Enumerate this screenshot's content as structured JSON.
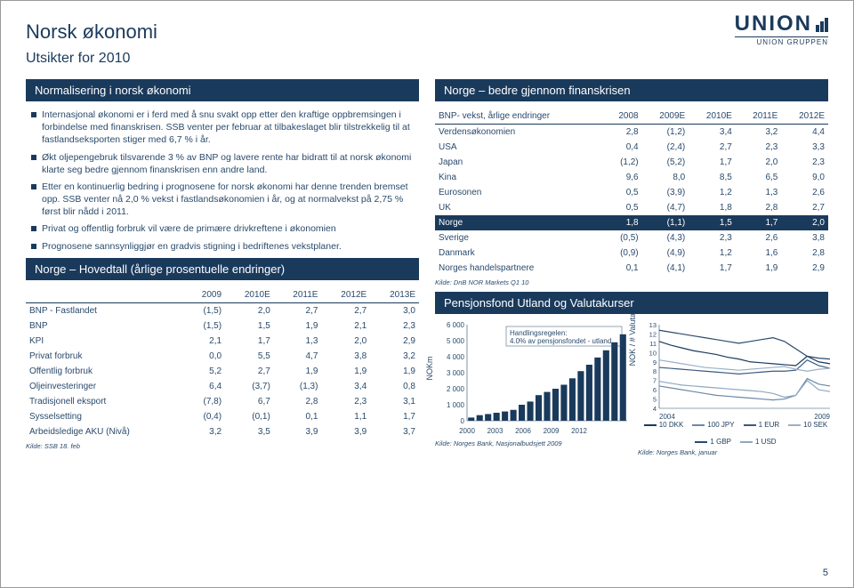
{
  "logo": {
    "main": "UNION",
    "sub": "UNION GRUPPEN"
  },
  "title": "Norsk økonomi",
  "subtitle": "Utsikter for 2010",
  "pagenum": "5",
  "left": {
    "banner1": "Normalisering i norsk økonomi",
    "bullets": [
      "Internasjonal økonomi er i ferd med å snu svakt opp etter den kraftige oppbremsingen i forbindelse med finanskrisen. SSB venter per februar at tilbakeslaget blir tilstrekkelig til at fastlandseksporten stiger med 6,7 % i år.",
      "Økt oljepengebruk tilsvarende 3 % av BNP og lavere rente har bidratt til at norsk økonomi klarte seg bedre gjennom finanskrisen enn andre land.",
      "Etter en kontinuerlig bedring i prognosene for norsk økonomi har denne trenden bremset opp. SSB venter nå 2,0 % vekst i fastlandsøkonomien i år, og at normalvekst på 2,75 % først blir nådd i 2011.",
      "Privat og offentlig forbruk vil være de primære drivkreftene i økonomien",
      "Prognosene sannsynliggjør en gradvis stigning i bedriftenes vekstplaner."
    ],
    "banner2": "Norge – Hovedtall (årlige prosentuelle endringer)",
    "table": {
      "head": [
        "",
        "2009",
        "2010E",
        "2011E",
        "2012E",
        "2013E"
      ],
      "rows": [
        [
          "BNP - Fastlandet",
          "(1,5)",
          "2,0",
          "2,7",
          "2,7",
          "3,0"
        ],
        [
          "BNP",
          "(1,5)",
          "1,5",
          "1,9",
          "2,1",
          "2,3"
        ],
        [
          "KPI",
          "2,1",
          "1,7",
          "1,3",
          "2,0",
          "2,9"
        ],
        [
          "Privat forbruk",
          "0,0",
          "5,5",
          "4,7",
          "3,8",
          "3,2"
        ],
        [
          "Offentlig forbruk",
          "5,2",
          "2,7",
          "1,9",
          "1,9",
          "1,9"
        ],
        [
          "Oljeinvesteringer",
          "6,4",
          "(3,7)",
          "(1,3)",
          "3,4",
          "0,8"
        ],
        [
          "Tradisjonell eksport",
          "(7,8)",
          "6,7",
          "2,8",
          "2,3",
          "3,1"
        ],
        [
          "Sysselsetting",
          "(0,4)",
          "(0,1)",
          "0,1",
          "1,1",
          "1,7"
        ],
        [
          "Arbeidsledige AKU (Nivå)",
          "3,2",
          "3,5",
          "3,9",
          "3,9",
          "3,7"
        ]
      ],
      "source": "Kilde: SSB 18. feb"
    }
  },
  "right": {
    "banner1": "Norge – bedre gjennom finanskrisen",
    "table": {
      "head": [
        "BNP- vekst, årlige endringer",
        "2008",
        "2009E",
        "2010E",
        "2011E",
        "2012E"
      ],
      "rows": [
        {
          "cells": [
            "Verdensøkonomien",
            "2,8",
            "(1,2)",
            "3,4",
            "3,2",
            "4,4"
          ]
        },
        {
          "cells": [
            "USA",
            "0,4",
            "(2,4)",
            "2,7",
            "2,3",
            "3,3"
          ]
        },
        {
          "cells": [
            "Japan",
            "(1,2)",
            "(5,2)",
            "1,7",
            "2,0",
            "2,3"
          ]
        },
        {
          "cells": [
            "Kina",
            "9,6",
            "8,0",
            "8,5",
            "6,5",
            "9,0"
          ]
        },
        {
          "cells": [
            "Eurosonen",
            "0,5",
            "(3,9)",
            "1,2",
            "1,3",
            "2,6"
          ]
        },
        {
          "cells": [
            "UK",
            "0,5",
            "(4,7)",
            "1,8",
            "2,8",
            "2,7"
          ]
        },
        {
          "cells": [
            "Norge",
            "1,8",
            "(1,1)",
            "1,5",
            "1,7",
            "2,0"
          ],
          "hl": true
        },
        {
          "cells": [
            "Sverige",
            "(0,5)",
            "(4,3)",
            "2,3",
            "2,6",
            "3,8"
          ]
        },
        {
          "cells": [
            "Danmark",
            "(0,9)",
            "(4,9)",
            "1,2",
            "1,6",
            "2,8"
          ]
        },
        {
          "cells": [
            "Norges handelspartnere",
            "0,1",
            "(4,1)",
            "1,7",
            "1,9",
            "2,9"
          ]
        }
      ],
      "source": "Kilde: DnB NOR Markets Q1 10"
    },
    "banner2": "Pensjonsfond Utland og Valutakurser",
    "chart_bar": {
      "y_label": "NOKm",
      "y_ticks": [
        "0",
        "1 000",
        "2 000",
        "3 000",
        "4 000",
        "5 000",
        "6 000"
      ],
      "x_ticks": [
        "2000",
        "2003",
        "2006",
        "2009",
        "2012"
      ],
      "annotation": "Handlingsregelen:\n4.0% av pensjonsfondet - utland",
      "bars": [
        200,
        350,
        420,
        500,
        580,
        680,
        1000,
        1200,
        1600,
        1800,
        2000,
        2250,
        2650,
        3100,
        3500,
        3950,
        4400,
        4900,
        5400
      ],
      "ymax": 6000,
      "bar_color": "#1a3a5c",
      "source": "Kilde: Norges Bank, Nasjonalbudsjett 2009"
    },
    "chart_line": {
      "y_label": "NOK / # Valuta",
      "y_ticks": [
        "4",
        "5",
        "6",
        "7",
        "8",
        "9",
        "10",
        "11",
        "12",
        "13"
      ],
      "x_ticks": [
        "2004",
        "2009"
      ],
      "ymin": 4,
      "ymax": 13,
      "series": [
        {
          "name": "10 DKK",
          "color": "#1a3a5c",
          "values": [
            11.2,
            10.8,
            10.5,
            10.2,
            10.0,
            9.8,
            9.5,
            9.3,
            9.0,
            8.9,
            8.8,
            8.7,
            8.6,
            9.6,
            9.0,
            8.8
          ]
        },
        {
          "name": "100 JPY",
          "color": "#6b88a8",
          "values": [
            6.4,
            6.2,
            6.0,
            5.8,
            5.6,
            5.4,
            5.3,
            5.2,
            5.1,
            5.0,
            4.9,
            5.0,
            5.4,
            7.2,
            6.6,
            6.4
          ]
        },
        {
          "name": "1 EUR",
          "color": "#3a5a7c",
          "values": [
            8.4,
            8.3,
            8.2,
            8.1,
            8.0,
            7.9,
            7.8,
            7.7,
            7.8,
            7.9,
            8.0,
            8.0,
            8.1,
            9.2,
            8.6,
            8.3
          ]
        },
        {
          "name": "10 SEK",
          "color": "#9ab0c8",
          "values": [
            9.2,
            9.0,
            8.8,
            8.6,
            8.4,
            8.3,
            8.2,
            8.1,
            8.2,
            8.3,
            8.4,
            8.5,
            8.2,
            8.0,
            8.2,
            8.3
          ]
        },
        {
          "name": "1 GBP",
          "color": "#2a4a6c",
          "values": [
            12.4,
            12.2,
            12.0,
            11.8,
            11.6,
            11.4,
            11.2,
            11.0,
            11.2,
            11.4,
            11.6,
            11.2,
            10.4,
            9.6,
            9.4,
            9.3
          ]
        },
        {
          "name": "1 USD",
          "color": "#8fa8be",
          "values": [
            6.9,
            6.7,
            6.5,
            6.4,
            6.3,
            6.2,
            6.1,
            6.0,
            5.9,
            5.8,
            5.6,
            5.2,
            5.4,
            7.0,
            6.0,
            5.8
          ]
        }
      ],
      "source": "Kilde: Norges Bank, januar"
    }
  }
}
